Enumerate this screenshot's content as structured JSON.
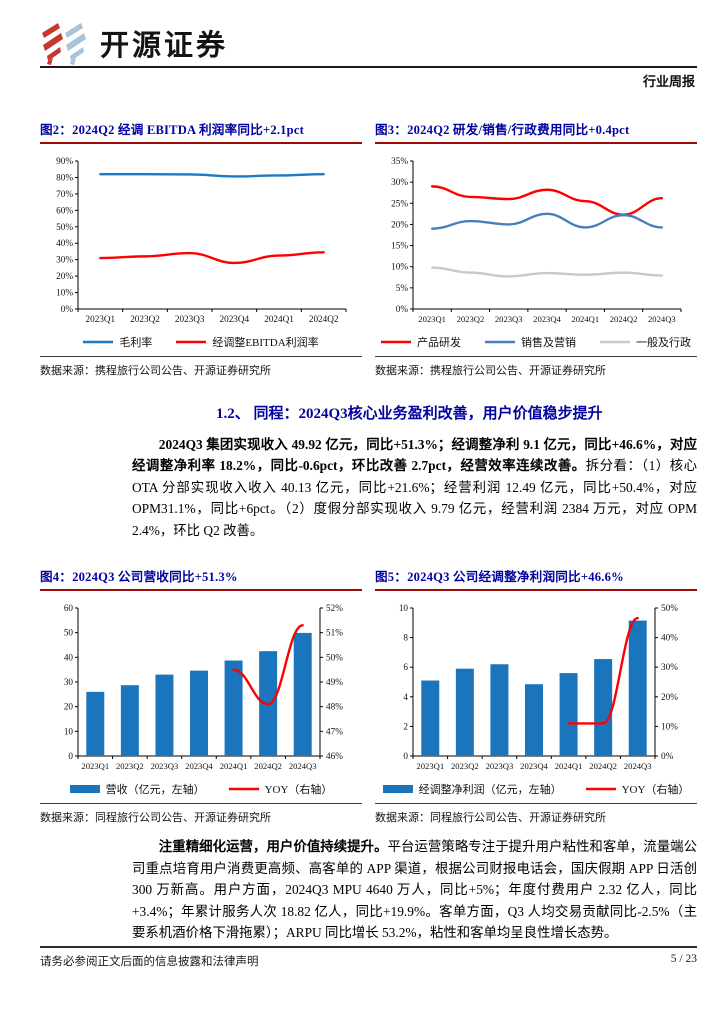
{
  "header": {
    "brand": "开源证券",
    "report_type": "行业周报"
  },
  "section": {
    "heading": "1.2、 同程：2024Q3核心业务盈利改善，用户价值稳步提升",
    "para1_bold": "2024Q3 集团实现收入 49.92 亿元，同比+51.3%；经调整净利 9.1 亿元，同比+46.6%，对应经调整净利率 18.2%，同比-0.6pct，环比改善 2.7pct，经营效率连续改善。",
    "para1_rest": "拆分看：（1）核心 OTA 分部实现收入收入 40.13 亿元，同比+21.6%；经营利润 12.49 亿元，同比+50.4%，对应 OPM31.1%，同比+6pct。（2）度假分部实现收入 9.79 亿元，经营利润 2384 万元，对应 OPM 2.4%，环比 Q2 改善。",
    "para2_bold": "注重精细化运营，用户价值持续提升。",
    "para2_rest": "平台运营策略专注于提升用户粘性和客单，流量端公司重点培育用户消费更高频、高客单的 APP 渠道，根据公司财报电话会，国庆假期 APP 日活创 300 万新高。用户方面，2024Q3 MPU 4640 万人，同比+5%；年度付费用户 2.32 亿人，同比+3.4%；年累计服务人次 18.82 亿人，同比+19.9%。客单方面，Q3 人均交易贡献同比-2.5%（主要系机酒价格下滑拖累）；ARPU 同比增长 53.2%，粘性和客单均呈良性增长态势。"
  },
  "footer": {
    "disclaimer": "请务必参阅正文后面的信息披露和法律声明",
    "page": "5 / 23"
  },
  "colors": {
    "title_blue": "#0202a0",
    "rule_red": "#9c0a0a",
    "line_red": "#ff0000",
    "line_blue": "#1d79c2",
    "series_blue": "#4a7ebb",
    "series_gray": "#c9c9c9",
    "bar_blue": "#1b75bc",
    "logo_red": "#c4392e",
    "logo_blue": "#a9c3d8"
  },
  "chart_data": [
    {
      "type": "line",
      "title": "图2：2024Q2 经调 EBITDA 利润率同比+2.1pct",
      "source": "数据来源：携程旅行公司公告、开源证券研究所",
      "categories": [
        "2023Q1",
        "2023Q2",
        "2023Q3",
        "2023Q4",
        "2024Q1",
        "2024Q2"
      ],
      "left_axis": {
        "min": 0,
        "max": 90,
        "step": 10,
        "format": "percent"
      },
      "grid": false,
      "legend_position": "bottom",
      "series": [
        {
          "name": "毛利率",
          "render": "line",
          "axis": "left",
          "color": "#1d79c2",
          "values": [
            82,
            82,
            81.8,
            80.6,
            81.2,
            82
          ]
        },
        {
          "name": "经调整EBITDA利润率",
          "render": "line",
          "axis": "left",
          "color": "#ff0000",
          "values": [
            31,
            32,
            34,
            28,
            32.5,
            34.5
          ]
        }
      ]
    },
    {
      "type": "line",
      "title": "图3：2024Q2 研发/销售/行政费用同比+0.4pct",
      "source": "数据来源：携程旅行公司公告、开源证券研究所",
      "categories": [
        "2023Q1",
        "2023Q2",
        "2023Q3",
        "2023Q4",
        "2024Q1",
        "2024Q2",
        "2024Q3"
      ],
      "left_axis": {
        "min": 0,
        "max": 35,
        "step": 5,
        "format": "percent"
      },
      "grid": false,
      "legend_position": "bottom",
      "series": [
        {
          "name": "产品研发",
          "render": "line",
          "axis": "left",
          "color": "#ff0000",
          "values": [
            29,
            26.5,
            26,
            28.2,
            25.5,
            22.3,
            26.2
          ]
        },
        {
          "name": "销售及营销",
          "render": "line",
          "axis": "left",
          "color": "#4a7ebb",
          "values": [
            19,
            20.8,
            20,
            22.5,
            19.3,
            22.2,
            19.3
          ]
        },
        {
          "name": "一般及行政",
          "render": "line",
          "axis": "left",
          "color": "#c9c9c9",
          "values": [
            9.8,
            8.6,
            7.7,
            8.5,
            8.1,
            8.6,
            7.9
          ]
        }
      ]
    },
    {
      "type": "bar",
      "title": "图4：2024Q3 公司营收同比+51.3%",
      "source": "数据来源：同程旅行公司公告、开源证券研究所",
      "categories": [
        "2023Q1",
        "2023Q2",
        "2023Q3",
        "2023Q4",
        "2024Q1",
        "2024Q2",
        "2024Q3"
      ],
      "left_axis": {
        "min": 0,
        "max": 60,
        "step": 10,
        "format": "number"
      },
      "right_axis": {
        "min": 46,
        "max": 52,
        "step": 1,
        "format": "percent"
      },
      "grid": false,
      "legend_position": "bottom",
      "series": [
        {
          "name": "营收（亿元，左轴）",
          "render": "bar",
          "axis": "left",
          "color": "#1b75bc",
          "values": [
            26,
            28.7,
            33,
            34.6,
            38.7,
            42.5,
            49.9
          ]
        },
        {
          "name": "YOY（右轴）",
          "render": "line",
          "axis": "right",
          "color": "#ff0000",
          "values": [
            null,
            null,
            null,
            null,
            49.5,
            48.1,
            51.3
          ]
        }
      ]
    },
    {
      "type": "bar",
      "title": "图5：2024Q3 公司经调整净利润同比+46.6%",
      "source": "数据来源：同程旅行公司公告、开源证券研究所",
      "categories": [
        "2023Q1",
        "2023Q2",
        "2023Q3",
        "2023Q4",
        "2024Q1",
        "2024Q2",
        "2024Q3"
      ],
      "left_axis": {
        "min": 0,
        "max": 10,
        "step": 2,
        "format": "number"
      },
      "right_axis": {
        "min": 0,
        "max": 50,
        "step": 10,
        "format": "percent"
      },
      "grid": false,
      "legend_position": "bottom",
      "series": [
        {
          "name": "经调整净利润（亿元，左轴）",
          "render": "bar",
          "axis": "left",
          "color": "#1b75bc",
          "values": [
            5.1,
            5.9,
            6.2,
            4.85,
            5.6,
            6.55,
            9.15
          ]
        },
        {
          "name": "YOY（右轴）",
          "render": "line",
          "axis": "right",
          "color": "#ff0000",
          "values": [
            null,
            null,
            null,
            null,
            11,
            11,
            46.6
          ]
        }
      ]
    }
  ]
}
